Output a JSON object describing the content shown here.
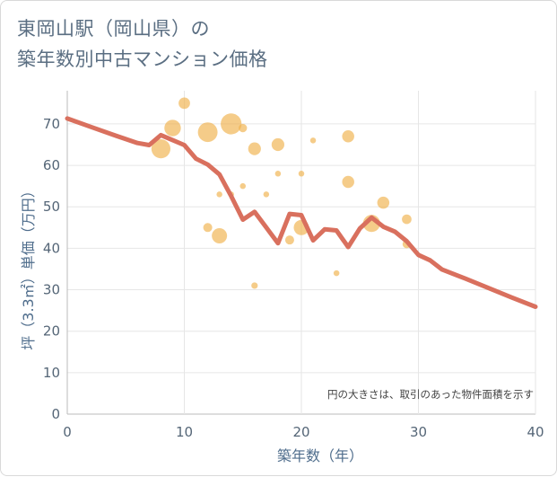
{
  "page": {
    "title_line1": "東岡山駅（岡山県）の",
    "title_line2": "築年数別中古マンション価格"
  },
  "chart_data": {
    "type": "scatter",
    "title": "東岡山駅（岡山県）の築年数別中古マンション価格",
    "xlabel": "築年数（年）",
    "ylabel": "坪（3.3㎡）単価（万円）",
    "xlim": [
      0,
      40
    ],
    "ylim": [
      0,
      78
    ],
    "xticks": [
      0,
      10,
      20,
      30,
      40
    ],
    "yticks": [
      0,
      10,
      20,
      30,
      40,
      50,
      60,
      70
    ],
    "grid": true,
    "note": "円の大きさは、取引のあった物件面積を示す",
    "colors": {
      "bubble": "#f0b04a",
      "line": "#d9705e",
      "grid": "#e6e6e6"
    },
    "bubbles": [
      {
        "x": 8,
        "y": 64,
        "size": 2.6
      },
      {
        "x": 9,
        "y": 69,
        "size": 2.2
      },
      {
        "x": 10,
        "y": 75,
        "size": 1.4
      },
      {
        "x": 12,
        "y": 68,
        "size": 2.7
      },
      {
        "x": 12,
        "y": 45,
        "size": 1.0
      },
      {
        "x": 13,
        "y": 43,
        "size": 2.0
      },
      {
        "x": 13,
        "y": 53,
        "size": 0.5
      },
      {
        "x": 14,
        "y": 70,
        "size": 2.9
      },
      {
        "x": 14,
        "y": 53,
        "size": 0.5
      },
      {
        "x": 15,
        "y": 69,
        "size": 0.9
      },
      {
        "x": 15,
        "y": 55,
        "size": 0.5
      },
      {
        "x": 16,
        "y": 64,
        "size": 1.6
      },
      {
        "x": 16,
        "y": 31,
        "size": 0.6
      },
      {
        "x": 17,
        "y": 53,
        "size": 0.5
      },
      {
        "x": 18,
        "y": 65,
        "size": 1.6
      },
      {
        "x": 18,
        "y": 58,
        "size": 0.5
      },
      {
        "x": 19,
        "y": 42,
        "size": 1.0
      },
      {
        "x": 20,
        "y": 45,
        "size": 2.0
      },
      {
        "x": 20,
        "y": 58,
        "size": 0.5
      },
      {
        "x": 21,
        "y": 66,
        "size": 0.5
      },
      {
        "x": 23,
        "y": 34,
        "size": 0.5
      },
      {
        "x": 24,
        "y": 67,
        "size": 1.5
      },
      {
        "x": 24,
        "y": 56,
        "size": 1.5
      },
      {
        "x": 26,
        "y": 46,
        "size": 2.3
      },
      {
        "x": 27,
        "y": 51,
        "size": 1.5
      },
      {
        "x": 29,
        "y": 47,
        "size": 1.1
      },
      {
        "x": 29,
        "y": 41,
        "size": 0.9
      }
    ],
    "trend": {
      "x": [
        0,
        2,
        4,
        6,
        7,
        8,
        9,
        10,
        11,
        12,
        13,
        14,
        15,
        16,
        17,
        18,
        19,
        20,
        21,
        22,
        23,
        24,
        25,
        26,
        27,
        28,
        29,
        30,
        31,
        32,
        34,
        36,
        38,
        40
      ],
      "y": [
        71.3,
        69.3,
        67.3,
        65.4,
        64.9,
        67.3,
        66.1,
        64.9,
        61.6,
        60.2,
        57.8,
        52.6,
        46.9,
        48.8,
        45.0,
        41.2,
        48.3,
        48.0,
        41.9,
        44.6,
        44.3,
        40.3,
        44.8,
        47.4,
        45.2,
        44.0,
        41.7,
        38.4,
        37.1,
        34.9,
        32.7,
        30.4,
        28.1,
        25.9
      ]
    }
  }
}
